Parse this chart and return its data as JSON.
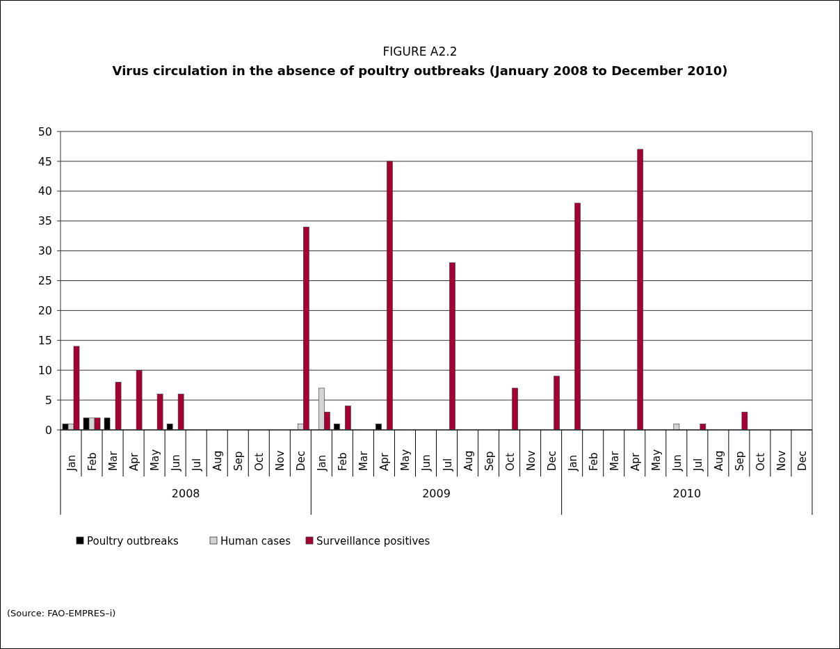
{
  "chart_data": {
    "type": "bar",
    "title": "FIGURE A2.2",
    "subtitle": "Virus circulation in the absence of poultry outbreaks (January 2008 to December 2010)",
    "categories": [
      "Jan",
      "Feb",
      "Mar",
      "Apr",
      "May",
      "Jun",
      "Jul",
      "Aug",
      "Sep",
      "Oct",
      "Nov",
      "Dec",
      "Jan",
      "Feb",
      "Mar",
      "Apr",
      "May",
      "Jun",
      "Jul",
      "Aug",
      "Sep",
      "Oct",
      "Nov",
      "Dec",
      "Jan",
      "Feb",
      "Mar",
      "Apr",
      "May",
      "Jun",
      "Jul",
      "Aug",
      "Sep",
      "Oct",
      "Nov",
      "Dec"
    ],
    "series": [
      {
        "name": "Poultry outbreaks",
        "color": "#000000",
        "values": [
          1,
          2,
          2,
          0,
          0,
          1,
          0,
          0,
          0,
          0,
          0,
          0,
          0,
          1,
          0,
          1,
          0,
          0,
          0,
          0,
          0,
          0,
          0,
          0,
          0,
          0,
          0,
          0,
          0,
          0,
          0,
          0,
          0,
          0,
          0,
          0
        ]
      },
      {
        "name": "Human cases",
        "color": "#d4d4d4",
        "values": [
          1,
          2,
          0,
          0,
          0,
          0,
          0,
          0,
          0,
          0,
          0,
          1,
          7,
          0,
          0,
          0,
          0,
          0,
          0,
          0,
          0,
          0,
          0,
          0,
          0,
          0,
          0,
          0,
          0,
          1,
          0,
          0,
          0,
          0,
          0,
          0
        ]
      },
      {
        "name": "Surveillance positives",
        "color": "#a50034",
        "values": [
          14,
          2,
          8,
          10,
          6,
          6,
          0,
          0,
          0,
          0,
          0,
          34,
          3,
          4,
          0,
          45,
          0,
          0,
          28,
          0,
          0,
          7,
          0,
          9,
          38,
          0,
          0,
          47,
          0,
          0,
          1,
          0,
          3,
          0,
          0,
          0
        ]
      }
    ],
    "ylim": [
      0,
      50
    ],
    "yticks": [
      0,
      5,
      10,
      15,
      20,
      25,
      30,
      35,
      40,
      45,
      50
    ],
    "grid": "y",
    "legend": "bottom left",
    "annotations": [
      "2008",
      "2009",
      "2010",
      "(Source: FAO-EMPRES–i)"
    ]
  }
}
